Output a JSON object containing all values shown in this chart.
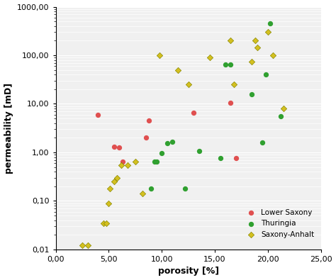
{
  "lower_saxony_x": [
    4.0,
    5.5,
    6.0,
    6.3,
    8.5,
    8.8,
    13.0,
    16.5,
    17.0
  ],
  "lower_saxony_y": [
    6.0,
    1.3,
    1.25,
    0.65,
    2.0,
    4.5,
    6.5,
    10.5,
    0.75
  ],
  "thuringia_x": [
    9.0,
    9.3,
    9.5,
    10.0,
    10.5,
    11.0,
    12.2,
    13.5,
    15.5,
    16.0,
    16.5,
    18.5,
    19.5,
    19.8,
    20.2,
    21.2
  ],
  "thuringia_y": [
    0.18,
    0.65,
    0.65,
    0.95,
    1.55,
    1.65,
    0.18,
    1.05,
    0.75,
    65.0,
    65.0,
    15.5,
    1.6,
    40.0,
    450.0,
    5.5
  ],
  "saxony_anhalt_x": [
    2.5,
    3.0,
    4.5,
    4.8,
    5.0,
    5.1,
    5.5,
    5.8,
    6.2,
    6.8,
    7.5,
    8.2,
    9.8,
    11.5,
    12.5,
    14.5,
    16.5,
    16.8,
    18.5,
    18.8,
    19.0,
    20.0,
    20.5,
    21.5
  ],
  "saxony_anhalt_y": [
    0.012,
    0.012,
    0.035,
    0.035,
    0.09,
    0.18,
    0.25,
    0.3,
    0.55,
    0.55,
    0.65,
    0.14,
    100.0,
    50.0,
    25.0,
    90.0,
    200.0,
    25.0,
    75.0,
    200.0,
    145.0,
    300.0,
    100.0,
    8.0
  ],
  "lower_saxony_color": "#e05050",
  "thuringia_color": "#30a030",
  "saxony_anhalt_color": "#d4c020",
  "xlabel": "porosity [%]",
  "ylabel": "permeability [mD]",
  "xlim": [
    0,
    25
  ],
  "ylim_log": [
    0.01,
    1000
  ],
  "xtick_labels": [
    "0,00",
    "5,00",
    "10,00",
    "15,00",
    "20,00",
    "25,00"
  ],
  "ytick_labels": [
    "0,01",
    "0,10",
    "1,00",
    "10,00",
    "100,00",
    "1000,00"
  ],
  "background_color": "#f0f0f0",
  "grid_color": "#ffffff"
}
